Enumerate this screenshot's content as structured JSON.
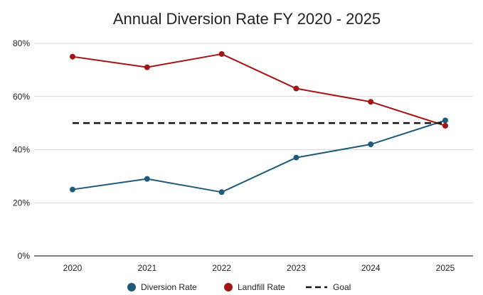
{
  "chart_data": {
    "type": "line",
    "title": "Annual Diversion Rate FY 2020 - 2025",
    "xlabel": "",
    "ylabel": "",
    "categories": [
      "2020",
      "2021",
      "2022",
      "2023",
      "2024",
      "2025"
    ],
    "y_ticks": [
      "0%",
      "20%",
      "40%",
      "60%",
      "80%"
    ],
    "ylim": [
      0,
      80
    ],
    "grid": true,
    "legend_position": "bottom",
    "series": [
      {
        "name": "Diversion Rate",
        "values": [
          25,
          29,
          24,
          37,
          42,
          51
        ],
        "color": "#1f5a7a",
        "style": "solid-markers"
      },
      {
        "name": "Landfill Rate",
        "values": [
          75,
          71,
          76,
          63,
          58,
          49
        ],
        "color": "#a31515",
        "style": "solid-markers"
      },
      {
        "name": "Goal",
        "values": [
          50,
          50,
          50,
          50,
          50,
          50
        ],
        "color": "#111111",
        "style": "dashed"
      }
    ]
  }
}
